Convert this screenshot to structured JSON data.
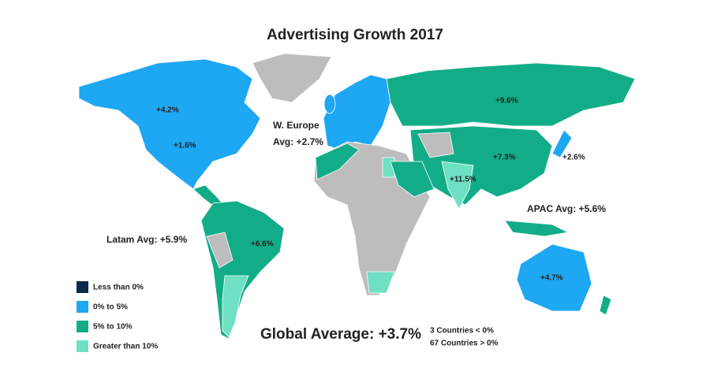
{
  "title": "Advertising Growth 2017",
  "labels": [
    "+4.2%",
    "+1.6%",
    "+9.6%",
    "+7.3%",
    "+2.6%",
    "+11.5%",
    "+6.6%",
    "+4.7%"
  ],
  "regions": {
    "w_europe": [
      "W. Europe",
      "Avg: +2.7%"
    ],
    "apac": "APAC Avg: +5.6%",
    "latam": "Latam Avg: +5.9%"
  },
  "legend": [
    {
      "label": "Less than 0%",
      "color": "#0c2a4c"
    },
    {
      "label": "0% to 5%",
      "color": "#1ea7f2"
    },
    {
      "label": "5% to 10%",
      "color": "#12ad88"
    },
    {
      "label": "Greater than 10%",
      "color": "#6fe0c3"
    }
  ],
  "global_average": "Global Average: +3.7%",
  "notes": [
    "3 Countries < 0%",
    "67 Countries > 0%"
  ]
}
